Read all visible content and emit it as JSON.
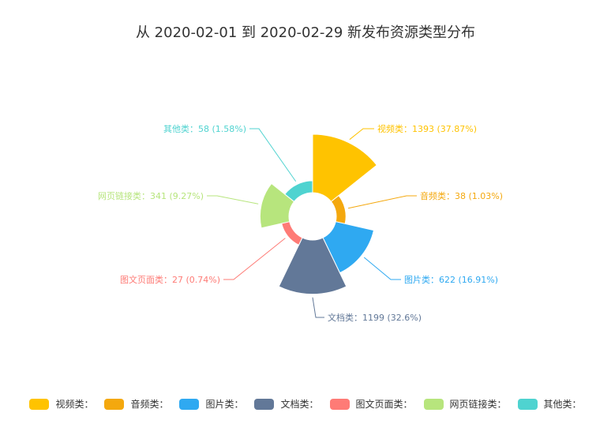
{
  "chart_data": {
    "type": "pie",
    "title": "从 2020-02-01 到 2020-02-29 新发布资源类型分布",
    "slices": [
      {
        "name": "视频类",
        "value": 1393,
        "percent": "37.87%",
        "color": "#ffc300",
        "label": "视频类：1393 (37.87%)",
        "legend": "视频类："
      },
      {
        "name": "音频类",
        "value": 38,
        "percent": "1.03%",
        "color": "#f4a80e",
        "label": "音频类：38 (1.03%)",
        "legend": "音频类："
      },
      {
        "name": "图片类",
        "value": 622,
        "percent": "16.91%",
        "color": "#2fa9f1",
        "label": "图片类：622 (16.91%)",
        "legend": "图片类："
      },
      {
        "name": "文档类",
        "value": 1199,
        "percent": "32.6%",
        "color": "#627898",
        "label": "文档类：1199 (32.6%)",
        "legend": "文档类："
      },
      {
        "name": "图文页面类",
        "value": 27,
        "percent": "0.74%",
        "color": "#fe7b76",
        "label": "图文页面类：27 (0.74%)",
        "legend": "图文页面类："
      },
      {
        "name": "网页链接类",
        "value": 341,
        "percent": "9.27%",
        "color": "#b7e57d",
        "label": "网页链接类：341 (9.27%)",
        "legend": "网页链接类："
      },
      {
        "name": "其他类",
        "value": 58,
        "percent": "1.58%",
        "color": "#4fd3d0",
        "label": "其他类：58 (1.58%)",
        "legend": "其他类："
      }
    ],
    "legend_position": "bottom"
  }
}
